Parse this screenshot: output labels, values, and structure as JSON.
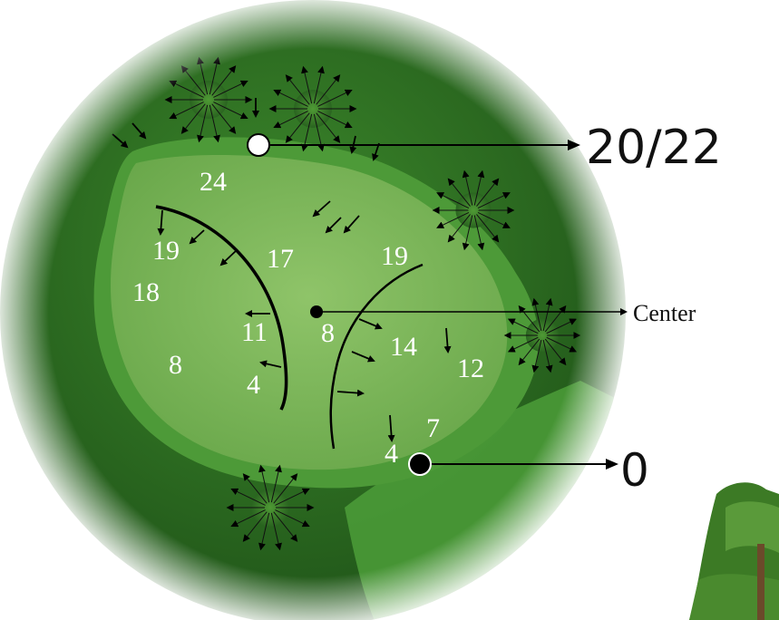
{
  "green_map": {
    "callouts": {
      "back": "20/22",
      "center": "Center",
      "front": "0"
    },
    "distance_labels": [
      "24",
      "19",
      "17",
      "19",
      "18",
      "11",
      "8",
      "14",
      "12",
      "8",
      "4",
      "7",
      "4"
    ],
    "colors": {
      "green_surface": "#7db85a",
      "fringe": "#3f8a2a",
      "rough": "#2f6b22",
      "pin_back": "#ffffff",
      "pin_front": "#000000"
    },
    "icons": [
      "tree-icon",
      "slope-arrow-icon",
      "pin-marker-icon"
    ]
  }
}
